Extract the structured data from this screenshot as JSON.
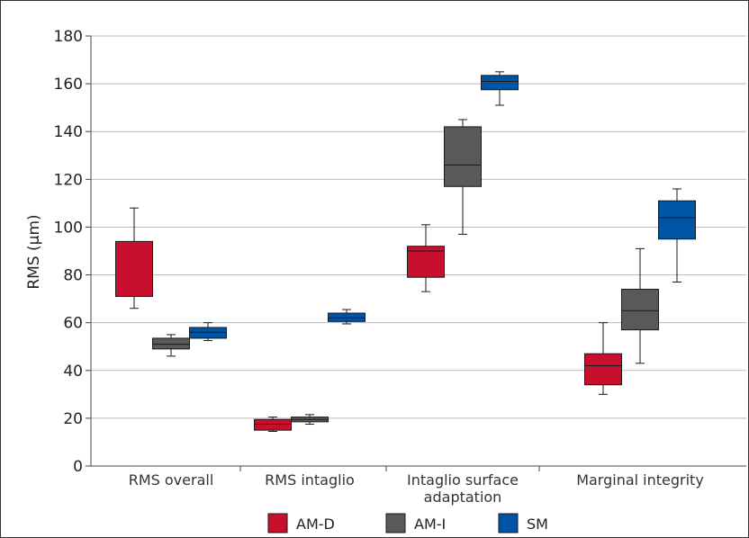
{
  "chart_data": {
    "type": "boxplot",
    "ylabel": "RMS (μm)",
    "ylim": [
      0,
      180
    ],
    "yticks": [
      0,
      20,
      40,
      60,
      80,
      100,
      120,
      140,
      160,
      180
    ],
    "grid": true,
    "legend_position": "bottom",
    "categories": [
      [
        "RMS overall"
      ],
      [
        "RMS intaglio"
      ],
      [
        "Intaglio surface",
        "adaptation"
      ],
      [
        "Marginal integrity"
      ]
    ],
    "series": [
      {
        "name": "AM-D",
        "color": "#c8102e",
        "boxes": [
          {
            "min": 66,
            "q1": 71,
            "median": 71,
            "q3": 94,
            "max": 108
          },
          {
            "min": 14.5,
            "q1": 15,
            "median": 17.5,
            "q3": 19.5,
            "max": 20.5
          },
          {
            "min": 73,
            "q1": 79,
            "median": 90,
            "q3": 92,
            "max": 101
          },
          {
            "min": 30,
            "q1": 34,
            "median": 42,
            "q3": 47,
            "max": 60
          }
        ]
      },
      {
        "name": "AM-I",
        "color": "#58595b",
        "boxes": [
          {
            "min": 46,
            "q1": 49,
            "median": 51,
            "q3": 53.5,
            "max": 55
          },
          {
            "min": 17.5,
            "q1": 18.5,
            "median": 19.5,
            "q3": 20.5,
            "max": 21.5
          },
          {
            "min": 97,
            "q1": 117,
            "median": 126,
            "q3": 142,
            "max": 145
          },
          {
            "min": 43,
            "q1": 57,
            "median": 65,
            "q3": 74,
            "max": 91
          }
        ]
      },
      {
        "name": "SM",
        "color": "#0054a6",
        "boxes": [
          {
            "min": 52.5,
            "q1": 53.5,
            "median": 56,
            "q3": 58,
            "max": 60
          },
          {
            "min": 59.5,
            "q1": 60.5,
            "median": 62,
            "q3": 64,
            "max": 65.5
          },
          {
            "min": 151,
            "q1": 157.5,
            "median": 161,
            "q3": 163.5,
            "max": 165
          },
          {
            "min": 77,
            "q1": 95,
            "median": 104,
            "q3": 111,
            "max": 116
          }
        ]
      }
    ]
  }
}
